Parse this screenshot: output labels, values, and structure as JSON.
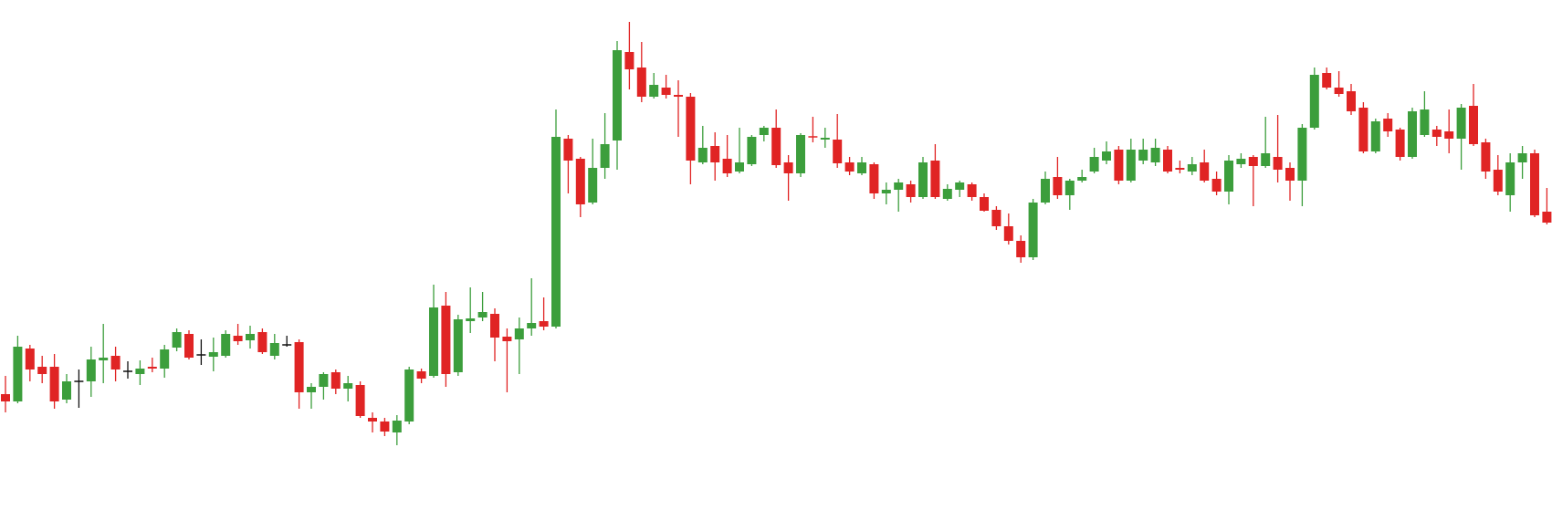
{
  "chart_data": {
    "type": "candlestick",
    "ylim": [
      0,
      559
    ],
    "up_color": "#3c9e3c",
    "down_color": "#e02424",
    "doji_color": "#111111",
    "open": [
      127,
      119,
      177,
      157,
      157,
      121,
      141,
      141,
      164,
      169,
      152,
      149,
      157,
      155,
      178,
      193,
      170,
      168,
      169,
      191,
      186,
      195,
      169,
      181,
      184,
      129,
      135,
      151,
      133,
      137,
      101,
      97,
      85,
      97,
      152,
      147,
      224,
      151,
      207,
      211,
      215,
      190,
      187,
      199,
      207,
      201,
      407,
      385,
      337,
      375,
      405,
      502,
      485,
      453,
      463,
      455,
      453,
      381,
      399,
      385,
      371,
      379,
      411,
      419,
      381,
      369,
      409,
      406,
      406,
      381,
      369,
      379,
      347,
      351,
      357,
      343,
      383,
      341,
      351,
      357,
      343,
      329,
      311,
      295,
      277,
      337,
      365,
      345,
      361,
      371,
      383,
      395,
      361,
      383,
      381,
      395,
      375,
      371,
      381,
      363,
      349,
      379,
      387,
      377,
      387,
      375,
      361,
      419,
      479,
      463,
      459,
      441,
      393,
      429,
      417,
      387,
      411,
      417,
      415,
      407,
      443,
      403,
      373,
      345,
      381,
      391,
      327
    ],
    "high": [
      147,
      191,
      181,
      169,
      171,
      149,
      154,
      179,
      204,
      179,
      163,
      164,
      167,
      181,
      199,
      197,
      187,
      189,
      197,
      204,
      202,
      199,
      193,
      191,
      187,
      139,
      151,
      154,
      147,
      141,
      107,
      101,
      104,
      157,
      155,
      247,
      239,
      214,
      244,
      239,
      221,
      199,
      211,
      254,
      233,
      439,
      411,
      387,
      407,
      435,
      514,
      535,
      513,
      479,
      477,
      471,
      457,
      421,
      414,
      411,
      419,
      411,
      421,
      439,
      389,
      413,
      431,
      419,
      434,
      387,
      387,
      381,
      359,
      363,
      361,
      387,
      401,
      357,
      361,
      359,
      347,
      333,
      325,
      301,
      341,
      371,
      387,
      363,
      373,
      397,
      404,
      399,
      407,
      407,
      407,
      399,
      383,
      387,
      395,
      371,
      389,
      391,
      389,
      431,
      433,
      381,
      423,
      485,
      485,
      481,
      467,
      447,
      429,
      435,
      419,
      441,
      459,
      421,
      439,
      445,
      467,
      407,
      389,
      391,
      399,
      395,
      353
    ],
    "low": [
      107,
      117,
      141,
      139,
      111,
      117,
      112,
      124,
      139,
      141,
      144,
      137,
      151,
      145,
      174,
      165,
      159,
      152,
      167,
      181,
      177,
      171,
      165,
      179,
      111,
      111,
      121,
      127,
      119,
      101,
      85,
      81,
      71,
      94,
      139,
      145,
      135,
      147,
      194,
      207,
      163,
      129,
      149,
      191,
      197,
      199,
      347,
      321,
      335,
      363,
      373,
      461,
      447,
      451,
      451,
      409,
      357,
      379,
      361,
      365,
      369,
      377,
      404,
      375,
      339,
      365,
      403,
      397,
      375,
      367,
      367,
      341,
      335,
      327,
      337,
      341,
      341,
      339,
      343,
      339,
      327,
      307,
      291,
      271,
      274,
      335,
      341,
      329,
      359,
      369,
      379,
      357,
      359,
      379,
      377,
      369,
      369,
      367,
      359,
      345,
      335,
      375,
      333,
      375,
      359,
      339,
      333,
      417,
      461,
      453,
      433,
      391,
      391,
      409,
      383,
      385,
      409,
      399,
      391,
      373,
      399,
      363,
      345,
      327,
      363,
      321,
      313
    ],
    "close": [
      119,
      179,
      154,
      149,
      119,
      141,
      141,
      165,
      167,
      154,
      152,
      155,
      155,
      176,
      195,
      167,
      170,
      173,
      193,
      185,
      193,
      173,
      183,
      181,
      129,
      135,
      149,
      133,
      139,
      103,
      97,
      86,
      98,
      154,
      144,
      222,
      149,
      209,
      210,
      217,
      189,
      185,
      199,
      205,
      201,
      409,
      383,
      335,
      375,
      401,
      504,
      483,
      453,
      466,
      455,
      453,
      383,
      397,
      381,
      369,
      381,
      409,
      419,
      378,
      369,
      411,
      408,
      408,
      380,
      371,
      381,
      347,
      351,
      359,
      343,
      381,
      343,
      352,
      359,
      343,
      328,
      311,
      295,
      277,
      337,
      363,
      345,
      361,
      365,
      387,
      393,
      361,
      395,
      395,
      397,
      371,
      373,
      379,
      361,
      349,
      383,
      385,
      377,
      391,
      373,
      361,
      419,
      477,
      463,
      456,
      437,
      393,
      426,
      415,
      387,
      437,
      439,
      409,
      407,
      441,
      401,
      371,
      349,
      381,
      391,
      323,
      315
    ]
  }
}
